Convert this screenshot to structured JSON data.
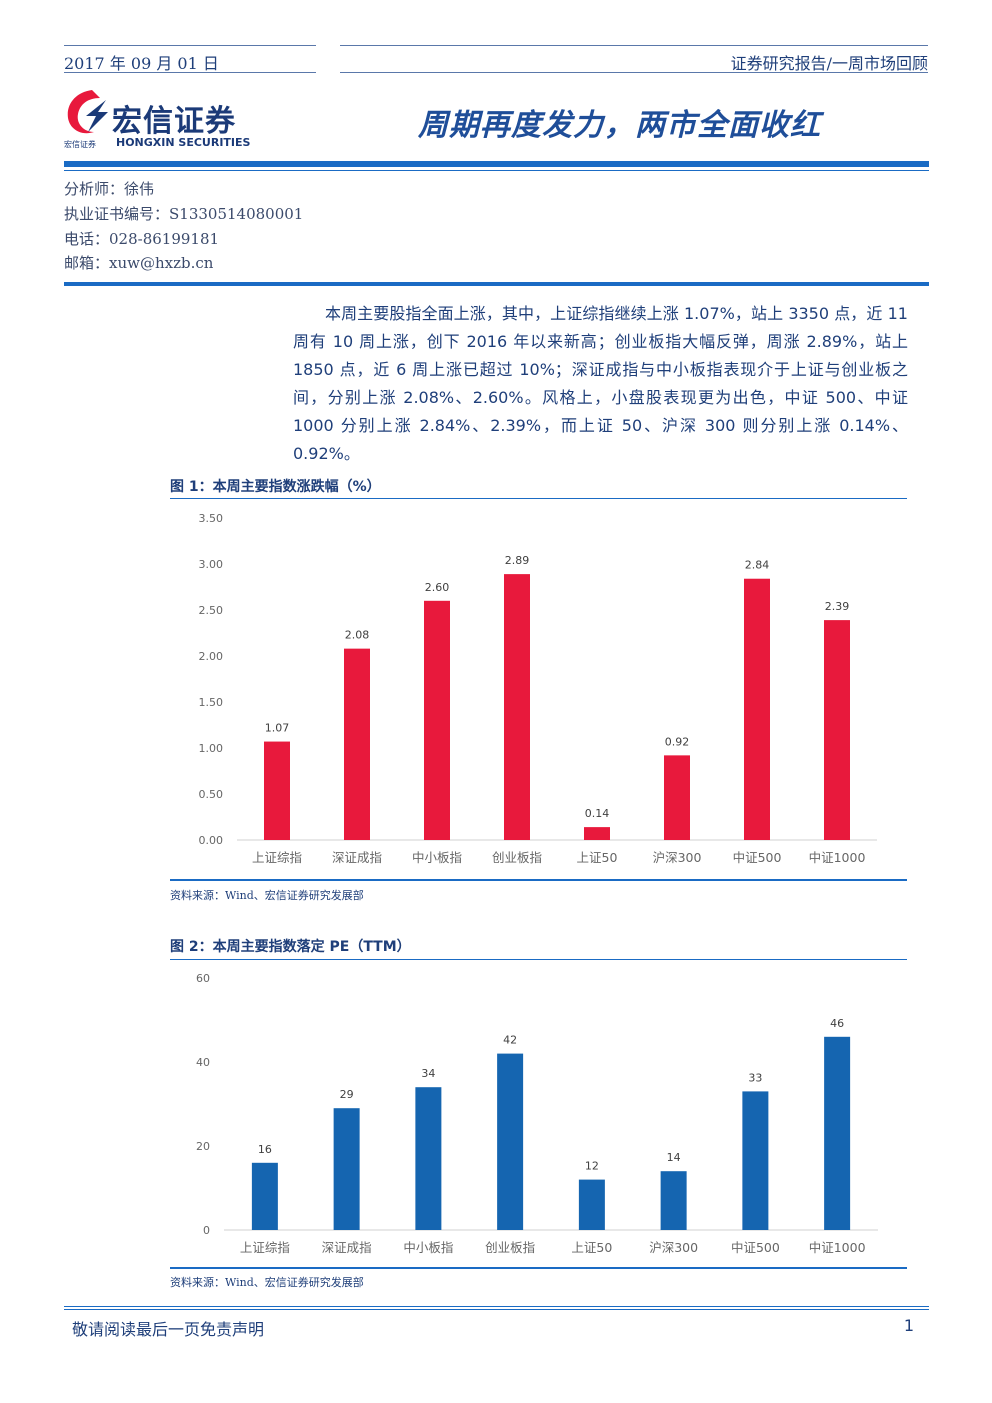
{
  "header": {
    "date": "2017 年 09 月 01 日",
    "category": "证券研究报告/一周市场回顾"
  },
  "logo": {
    "name_cn": "宏信证券",
    "name_en": "HONGXIN SECURITIES",
    "name_small": "宏信证券"
  },
  "title": "周期再度发力，两市全面收红",
  "analyst": {
    "name": "分析师：徐伟",
    "license": "执业证书编号：S1330514080001",
    "phone": "电话：028-86199181",
    "email": "邮箱：xuw@hxzb.cn"
  },
  "summary": "本周主要股指全面上涨，其中，上证综指继续上涨 1.07%，站上 3350 点，近 11 周有 10 周上涨，创下 2016 年以来新高；创业板指大幅反弹，周涨 2.89%，站上 1850 点，近 6 周上涨已超过 10%；深证成指与中小板指表现介于上证与创业板之间，分别上涨 2.08%、2.60%。风格上，小盘股表现更为出色，中证 500、中证 1000 分别上涨 2.84%、2.39%，而上证 50、沪深 300 则分别上涨 0.14%、0.92%。",
  "figures": {
    "fig1_title": "图 1：本周主要指数涨跌幅（%）",
    "fig1_source": "资料来源：Wind、宏信证券研究发展部",
    "fig2_title": "图 2：本周主要指数落定 PE（TTM）",
    "fig2_source": "资料来源：Wind、宏信证券研究发展部"
  },
  "colors": {
    "accent": "#1a6bc4",
    "bar_red": "#e8193c",
    "bar_blue": "#1565b0"
  },
  "chart_data": [
    {
      "type": "bar",
      "title": "图 1：本周主要指数涨跌幅（%）",
      "categories": [
        "上证综指",
        "深证成指",
        "中小板指",
        "创业板指",
        "上证50",
        "沪深300",
        "中证500",
        "中证1000"
      ],
      "values": [
        1.07,
        2.08,
        2.6,
        2.89,
        0.14,
        0.92,
        2.84,
        2.39
      ],
      "value_labels": [
        "1.07",
        "2.08",
        "2.60",
        "2.89",
        "0.14",
        "0.92",
        "2.84",
        "2.39"
      ],
      "ylim": [
        0,
        3.5
      ],
      "yticks": [
        "0.00",
        "0.50",
        "1.00",
        "1.50",
        "2.00",
        "2.50",
        "3.00",
        "3.50"
      ],
      "color": "#e8193c",
      "grid": false
    },
    {
      "type": "bar",
      "title": "图 2：本周主要指数落定 PE（TTM）",
      "categories": [
        "上证综指",
        "深证成指",
        "中小板指",
        "创业板指",
        "上证50",
        "沪深300",
        "中证500",
        "中证1000"
      ],
      "values": [
        16,
        29,
        34,
        42,
        12,
        14,
        33,
        46
      ],
      "value_labels": [
        "16",
        "29",
        "34",
        "42",
        "12",
        "14",
        "33",
        "46"
      ],
      "ylim": [
        0,
        60
      ],
      "yticks": [
        "0",
        "20",
        "40",
        "60"
      ],
      "color": "#1565b0",
      "grid": false
    }
  ],
  "footer": {
    "disclaimer": "敬请阅读最后一页免责声明",
    "page": "1"
  }
}
